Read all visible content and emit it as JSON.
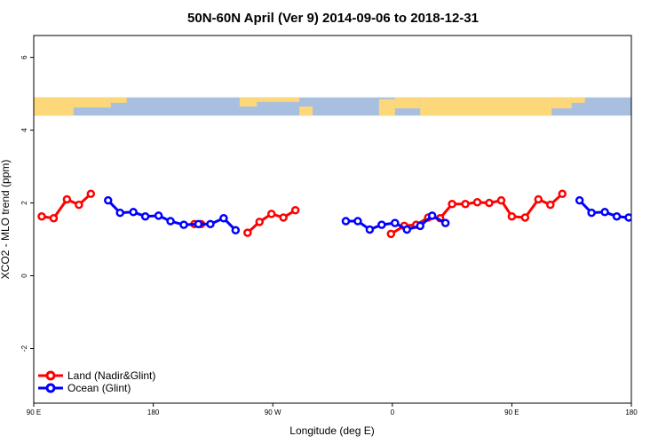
{
  "chart_data": {
    "type": "line",
    "title": "50N-60N April (Ver 9)   2014-09-06 to 2018-12-31",
    "xlabel": "Longitude (deg E)",
    "ylabel": "XCO2 - MLO trend (ppm)",
    "xlim": [
      90,
      540
    ],
    "ylim": [
      -3.5,
      6.6
    ],
    "x_ticks": [
      {
        "value": 90,
        "label": "90 E"
      },
      {
        "value": 180,
        "label": "180"
      },
      {
        "value": 270,
        "label": "90 W"
      },
      {
        "value": 360,
        "label": "0"
      },
      {
        "value": 450,
        "label": "90 E"
      },
      {
        "value": 540,
        "label": "180"
      }
    ],
    "y_ticks": [
      {
        "value": -2,
        "label": "-2"
      },
      {
        "value": 0,
        "label": "0"
      },
      {
        "value": 2,
        "label": "2"
      },
      {
        "value": 4,
        "label": "4"
      },
      {
        "value": 6,
        "label": "6"
      }
    ],
    "map_strip": {
      "y_min": 4.4,
      "y_max": 4.9,
      "ocean_color": "#a9bfe0",
      "land_color": "#fdd87a"
    },
    "legend_position": "bottom-left",
    "series": [
      {
        "name": "Land (Nadir&Glint)",
        "color": "#ff0000",
        "segments": [
          [
            [
              96,
              1.63
            ],
            [
              105,
              1.58
            ],
            [
              115,
              2.1
            ],
            [
              124,
              1.95
            ],
            [
              133,
              2.25
            ]
          ],
          [
            [
              211,
              1.42
            ],
            [
              216,
              1.42
            ]
          ],
          [
            [
              251,
              1.18
            ],
            [
              260,
              1.48
            ],
            [
              269,
              1.7
            ],
            [
              278,
              1.6
            ],
            [
              287,
              1.8
            ]
          ],
          [
            [
              359,
              1.15
            ],
            [
              369,
              1.37
            ],
            [
              378,
              1.4
            ],
            [
              387,
              1.6
            ],
            [
              396,
              1.58
            ],
            [
              405,
              1.97
            ],
            [
              415,
              1.97
            ],
            [
              424,
              2.02
            ],
            [
              433,
              2.0
            ],
            [
              442,
              2.07
            ],
            [
              450,
              1.63
            ],
            [
              460,
              1.6
            ],
            [
              470,
              2.1
            ],
            [
              479,
              1.95
            ],
            [
              488,
              2.25
            ]
          ]
        ]
      },
      {
        "name": "Ocean (Glint)",
        "color": "#0000ff",
        "segments": [
          [
            [
              146,
              2.07
            ],
            [
              155,
              1.73
            ],
            [
              165,
              1.75
            ],
            [
              174,
              1.63
            ],
            [
              184,
              1.65
            ],
            [
              193,
              1.5
            ],
            [
              203,
              1.4
            ],
            [
              214,
              1.42
            ],
            [
              223,
              1.42
            ],
            [
              233,
              1.58
            ],
            [
              242,
              1.25
            ]
          ],
          [
            [
              325,
              1.5
            ],
            [
              334,
              1.5
            ],
            [
              343,
              1.27
            ],
            [
              352,
              1.4
            ],
            [
              362,
              1.45
            ],
            [
              371,
              1.27
            ],
            [
              381,
              1.37
            ],
            [
              390,
              1.65
            ],
            [
              400,
              1.45
            ]
          ],
          [
            [
              501,
              2.07
            ],
            [
              510,
              1.73
            ],
            [
              520,
              1.75
            ],
            [
              529,
              1.63
            ],
            [
              538,
              1.6
            ]
          ]
        ]
      }
    ]
  }
}
